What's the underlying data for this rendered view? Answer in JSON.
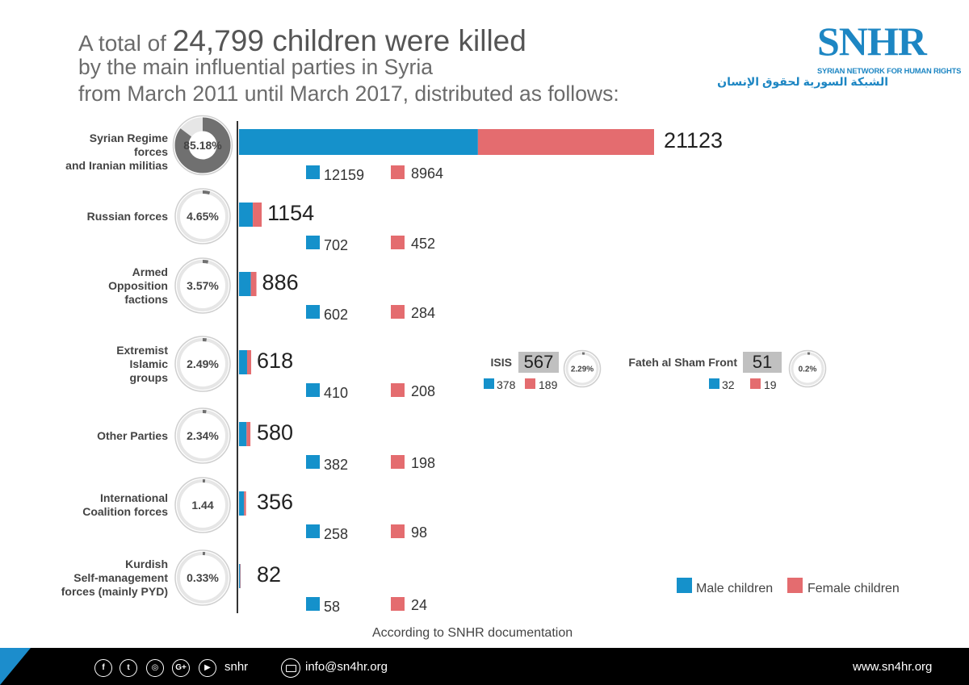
{
  "title": {
    "line1_prefix": "A total of ",
    "line1_big": "24,799 children were killed",
    "line2": "by the main influential parties in Syria",
    "line3": "from March 2011 until March 2017, distributed as follows:"
  },
  "logo": {
    "name": "SNHR",
    "english": "SYRIAN NETWORK FOR HUMAN RIGHTS",
    "arabic": "الشبكة السورية لحقوق الإنسان"
  },
  "colors": {
    "male": "#1591cb",
    "female": "#e46c6f",
    "donut_bg": "#e6e6e6",
    "donut_fill": "#707070"
  },
  "chart_data": {
    "type": "bar",
    "orientation": "horizontal",
    "stacked": true,
    "title": "A total of 24,799 children were killed by the main influential parties in Syria from March 2011 until March 2017",
    "series_names": [
      "Male children",
      "Female children"
    ],
    "categories": [
      {
        "label_lines": [
          "Syrian Regime forces",
          "and Iranian militias"
        ],
        "pct_label": "85.18%",
        "pct": 85.18,
        "total": "21123",
        "male": 12159,
        "female": 8964
      },
      {
        "label_lines": [
          "Russian forces"
        ],
        "pct_label": "4.65%",
        "pct": 4.65,
        "total": "1154",
        "male": 702,
        "female": 452
      },
      {
        "label_lines": [
          "Armed",
          "Opposition",
          "factions"
        ],
        "pct_label": "3.57%",
        "pct": 3.57,
        "total": "886",
        "male": 602,
        "female": 284
      },
      {
        "label_lines": [
          "Extremist",
          "Islamic",
          "groups"
        ],
        "pct_label": "2.49%",
        "pct": 2.49,
        "total": "618",
        "male": 410,
        "female": 208
      },
      {
        "label_lines": [
          "Other Parties"
        ],
        "pct_label": "2.34%",
        "pct": 2.34,
        "total": "580",
        "male": 382,
        "female": 198
      },
      {
        "label_lines": [
          "International",
          "Coalition forces"
        ],
        "pct_label": "1.44",
        "pct": 1.44,
        "total": "356",
        "male": 258,
        "female": 98
      },
      {
        "label_lines": [
          "Kurdish",
          "Self-management",
          "forces (mainly PYD)"
        ],
        "pct_label": "0.33%",
        "pct": 0.33,
        "total": "82",
        "male": 58,
        "female": 24
      }
    ],
    "subgroups": [
      {
        "name": "ISIS",
        "total": "567",
        "pct_label": "2.29%",
        "pct": 2.29,
        "male": "378",
        "female": "189"
      },
      {
        "name": "Fateh al Sham Front",
        "total": "51",
        "pct_label": "0.2%",
        "pct": 0.2,
        "male": "32",
        "female": "19"
      }
    ],
    "legend": {
      "male": "Male children",
      "female": "Female children",
      "position": "bottom-right"
    }
  },
  "source": "According to SNHR documentation",
  "footer": {
    "social_icons": [
      "facebook-icon",
      "twitter-icon",
      "instagram-icon",
      "google-plus-icon",
      "youtube-icon"
    ],
    "handle": "snhr",
    "email": "info@sn4hr.org",
    "website": "www.sn4hr.org"
  }
}
